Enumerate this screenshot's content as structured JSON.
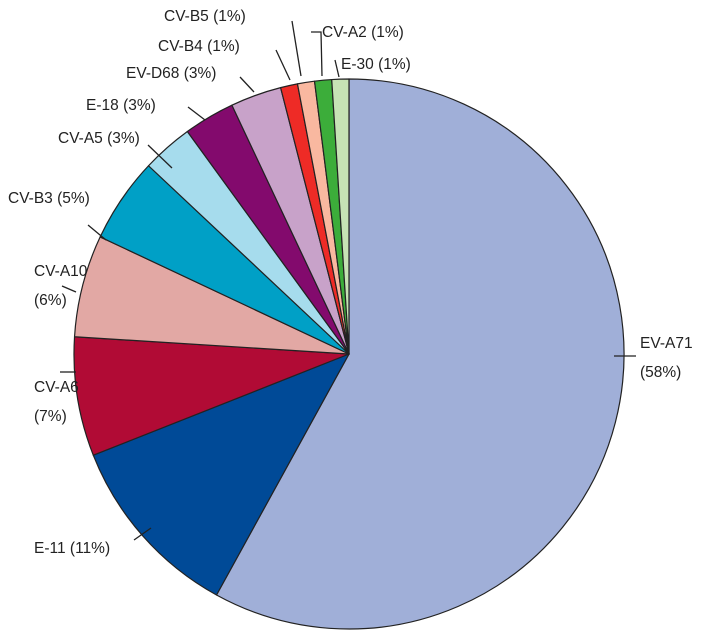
{
  "chart_data": {
    "type": "pie",
    "series": [
      {
        "label": "EV-A71",
        "percent_label": "(58%)",
        "value": 58,
        "color": "#a0afd8"
      },
      {
        "label": "E-11",
        "percent_label": "(11%)",
        "value": 11,
        "color": "#004a97"
      },
      {
        "label": "CV-A6",
        "percent_label": "(7%)",
        "value": 7,
        "color": "#b10b35"
      },
      {
        "label": "CV-A10",
        "percent_label": "(6%)",
        "value": 6,
        "color": "#e2a8a4"
      },
      {
        "label": "CV-B3",
        "percent_label": "(5%)",
        "value": 5,
        "color": "#00a0c6"
      },
      {
        "label": "CV-A5",
        "percent_label": "(3%)",
        "value": 3,
        "color": "#a6dced"
      },
      {
        "label": "E-18",
        "percent_label": "(3%)",
        "value": 3,
        "color": "#830a6d"
      },
      {
        "label": "EV-D68",
        "percent_label": "(3%)",
        "value": 3,
        "color": "#c8a2c9"
      },
      {
        "label": "CV-B4",
        "percent_label": "(1%)",
        "value": 1,
        "color": "#ee2b26"
      },
      {
        "label": "CV-B5",
        "percent_label": "(1%)",
        "value": 1,
        "color": "#f9b8a0"
      },
      {
        "label": "CV-A2",
        "percent_label": "(1%)",
        "value": 1,
        "color": "#3cad3a"
      },
      {
        "label": "E-30",
        "percent_label": "(1%)",
        "value": 1,
        "color": "#c6e3b5"
      }
    ]
  }
}
